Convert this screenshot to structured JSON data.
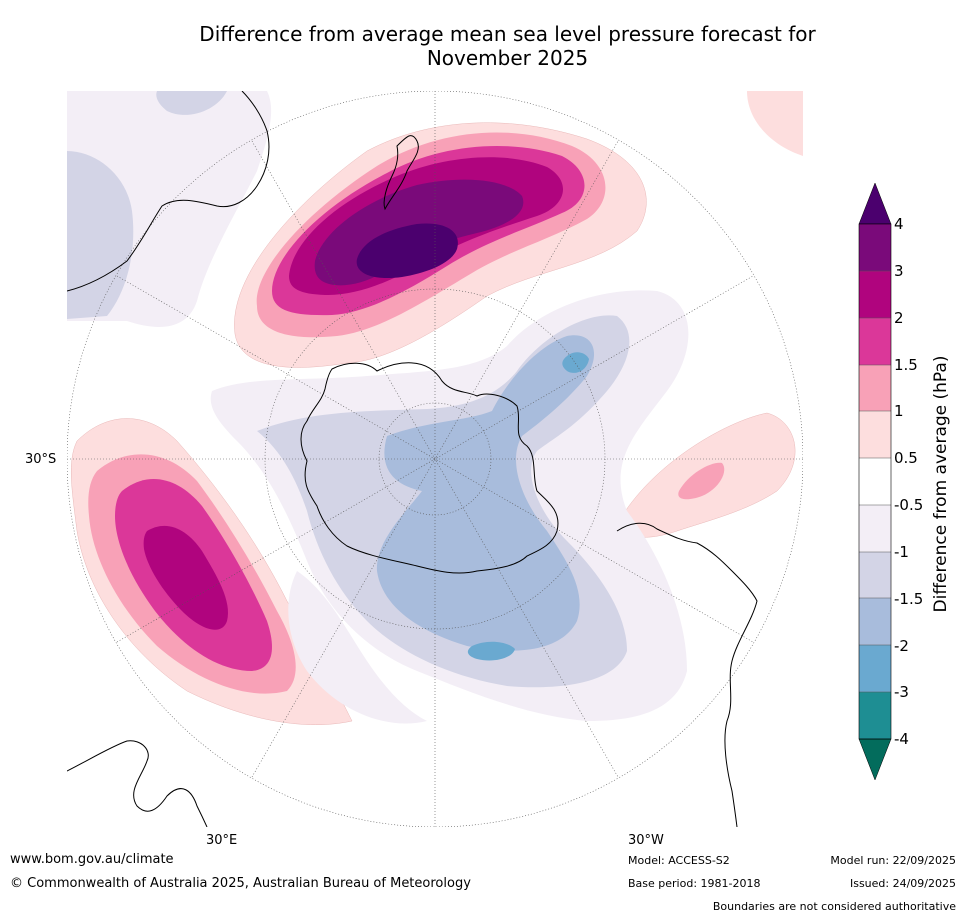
{
  "title_line1": "Difference from average mean sea level pressure forecast for",
  "title_line2": "November 2025",
  "labels": {
    "lat_30s": "30°S",
    "lon_30e": "30°E",
    "lon_30w": "30°W"
  },
  "colorbar": {
    "title": "Difference from average (hPa)",
    "ticks": [
      "4",
      "3",
      "2",
      "1.5",
      "1",
      "0.5",
      "-0.5",
      "-1",
      "-1.5",
      "-2",
      "-3",
      "-4"
    ],
    "colors": {
      "gt4": "#4b006e",
      "3to4": "#7a0a7a",
      "2to3": "#b0047e",
      "1.5to2": "#db3799",
      "1to1.5": "#f8a1b7",
      "0.5to1": "#fddede",
      "neutral": "#ffffff",
      "-1to-0.5": "#f3eef6",
      "-1.5to-1": "#d3d4e6",
      "-2to-1.5": "#a8bcdc",
      "-3to-2": "#6aa9d0",
      "-4to-3": "#1e8e93",
      "lt-4": "#036c5c"
    }
  },
  "footer": {
    "url": "www.bom.gov.au/climate",
    "copyright": "© Commonwealth of Australia 2025, Australian Bureau of Meteorology",
    "model": "Model: ACCESS-S2",
    "base_period": "Base period: 1981-2018",
    "model_run": "Model run: 22/09/2025",
    "issued": "Issued: 24/09/2025",
    "disclaimer": "Boundaries are not considered authoritative"
  }
}
